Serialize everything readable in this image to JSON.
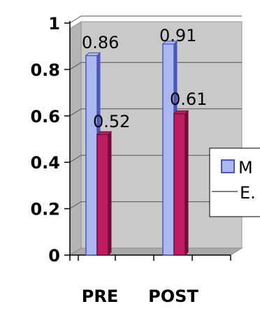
{
  "chart_data": {
    "type": "bar",
    "categories": [
      "PRE",
      "POST"
    ],
    "series": [
      {
        "name": "M",
        "values": [
          0.86,
          0.91
        ],
        "color": "#a9b9ef",
        "edge": "#4a57b8"
      },
      {
        "name": "E.",
        "values": [
          0.52,
          0.61
        ],
        "color": "#c01a63",
        "edge": "#6e0f38"
      }
    ],
    "data_labels": [
      "0.86",
      "0.91",
      "0.52",
      "0.61"
    ],
    "y_ticks": [
      "0",
      "0.2",
      "0.4",
      "0.6",
      "0.8",
      "1"
    ],
    "ylim": [
      0,
      1
    ],
    "grid": true,
    "plot_background": "#c9c9c9",
    "legend_position": "right",
    "style": "3d"
  }
}
